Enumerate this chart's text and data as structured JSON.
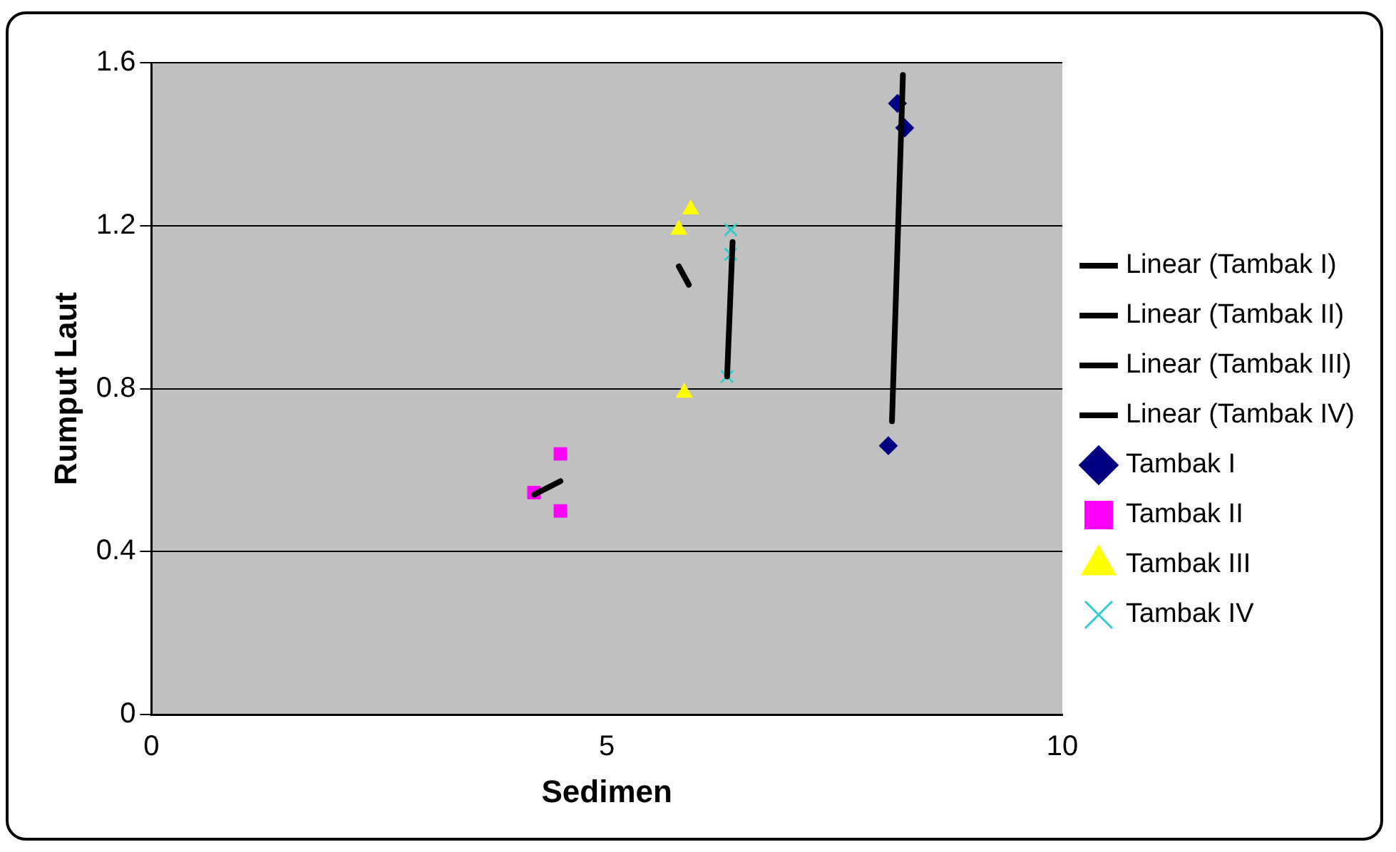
{
  "chart_data": {
    "type": "scatter",
    "xlabel": "Sedimen",
    "ylabel": "Rumput Laut",
    "xlim": [
      0,
      10
    ],
    "xticks": [
      0,
      5,
      10
    ],
    "ylim": [
      0,
      1.6
    ],
    "yticks": [
      0,
      0.4,
      0.8,
      1.2,
      1.6
    ],
    "grid": "y",
    "legend": "right",
    "series": [
      {
        "name": "Tambak I",
        "color": "#000080",
        "marker": "diamond",
        "x": [
          8.19,
          8.27,
          8.09
        ],
        "values": [
          1.5,
          1.44,
          0.66
        ]
      },
      {
        "name": "Tambak II",
        "color": "#ff00ff",
        "marker": "square",
        "x": [
          4.49,
          4.2,
          4.49
        ],
        "values": [
          0.64,
          0.545,
          0.5
        ]
      },
      {
        "name": "Tambak III",
        "color": "#ffff00",
        "marker": "triangle",
        "x": [
          5.92,
          5.79,
          5.85
        ],
        "values": [
          1.24,
          1.19,
          0.79
        ]
      },
      {
        "name": "Tambak IV",
        "color": "#33cccc",
        "marker": "cross",
        "x": [
          6.36,
          6.36,
          6.32
        ],
        "values": [
          1.19,
          1.13,
          0.83
        ]
      },
      {
        "name": "Linear (Tambak I)",
        "type": "line",
        "color": "#000000",
        "marker": "none",
        "x": [
          8.13,
          8.25
        ],
        "values": [
          0.72,
          1.57
        ]
      },
      {
        "name": "Linear (Tambak II)",
        "type": "line",
        "color": "#000000",
        "marker": "none",
        "x": [
          4.2,
          4.49
        ],
        "values": [
          0.54,
          0.573
        ]
      },
      {
        "name": "Linear (Tambak III)",
        "type": "line",
        "color": "#000000",
        "marker": "none",
        "x": [
          5.79,
          5.9
        ],
        "values": [
          1.1,
          1.055
        ]
      },
      {
        "name": "Linear (Tambak IV)",
        "type": "line",
        "color": "#000000",
        "marker": "none",
        "x": [
          6.32,
          6.38
        ],
        "values": [
          0.83,
          1.16
        ]
      }
    ]
  }
}
